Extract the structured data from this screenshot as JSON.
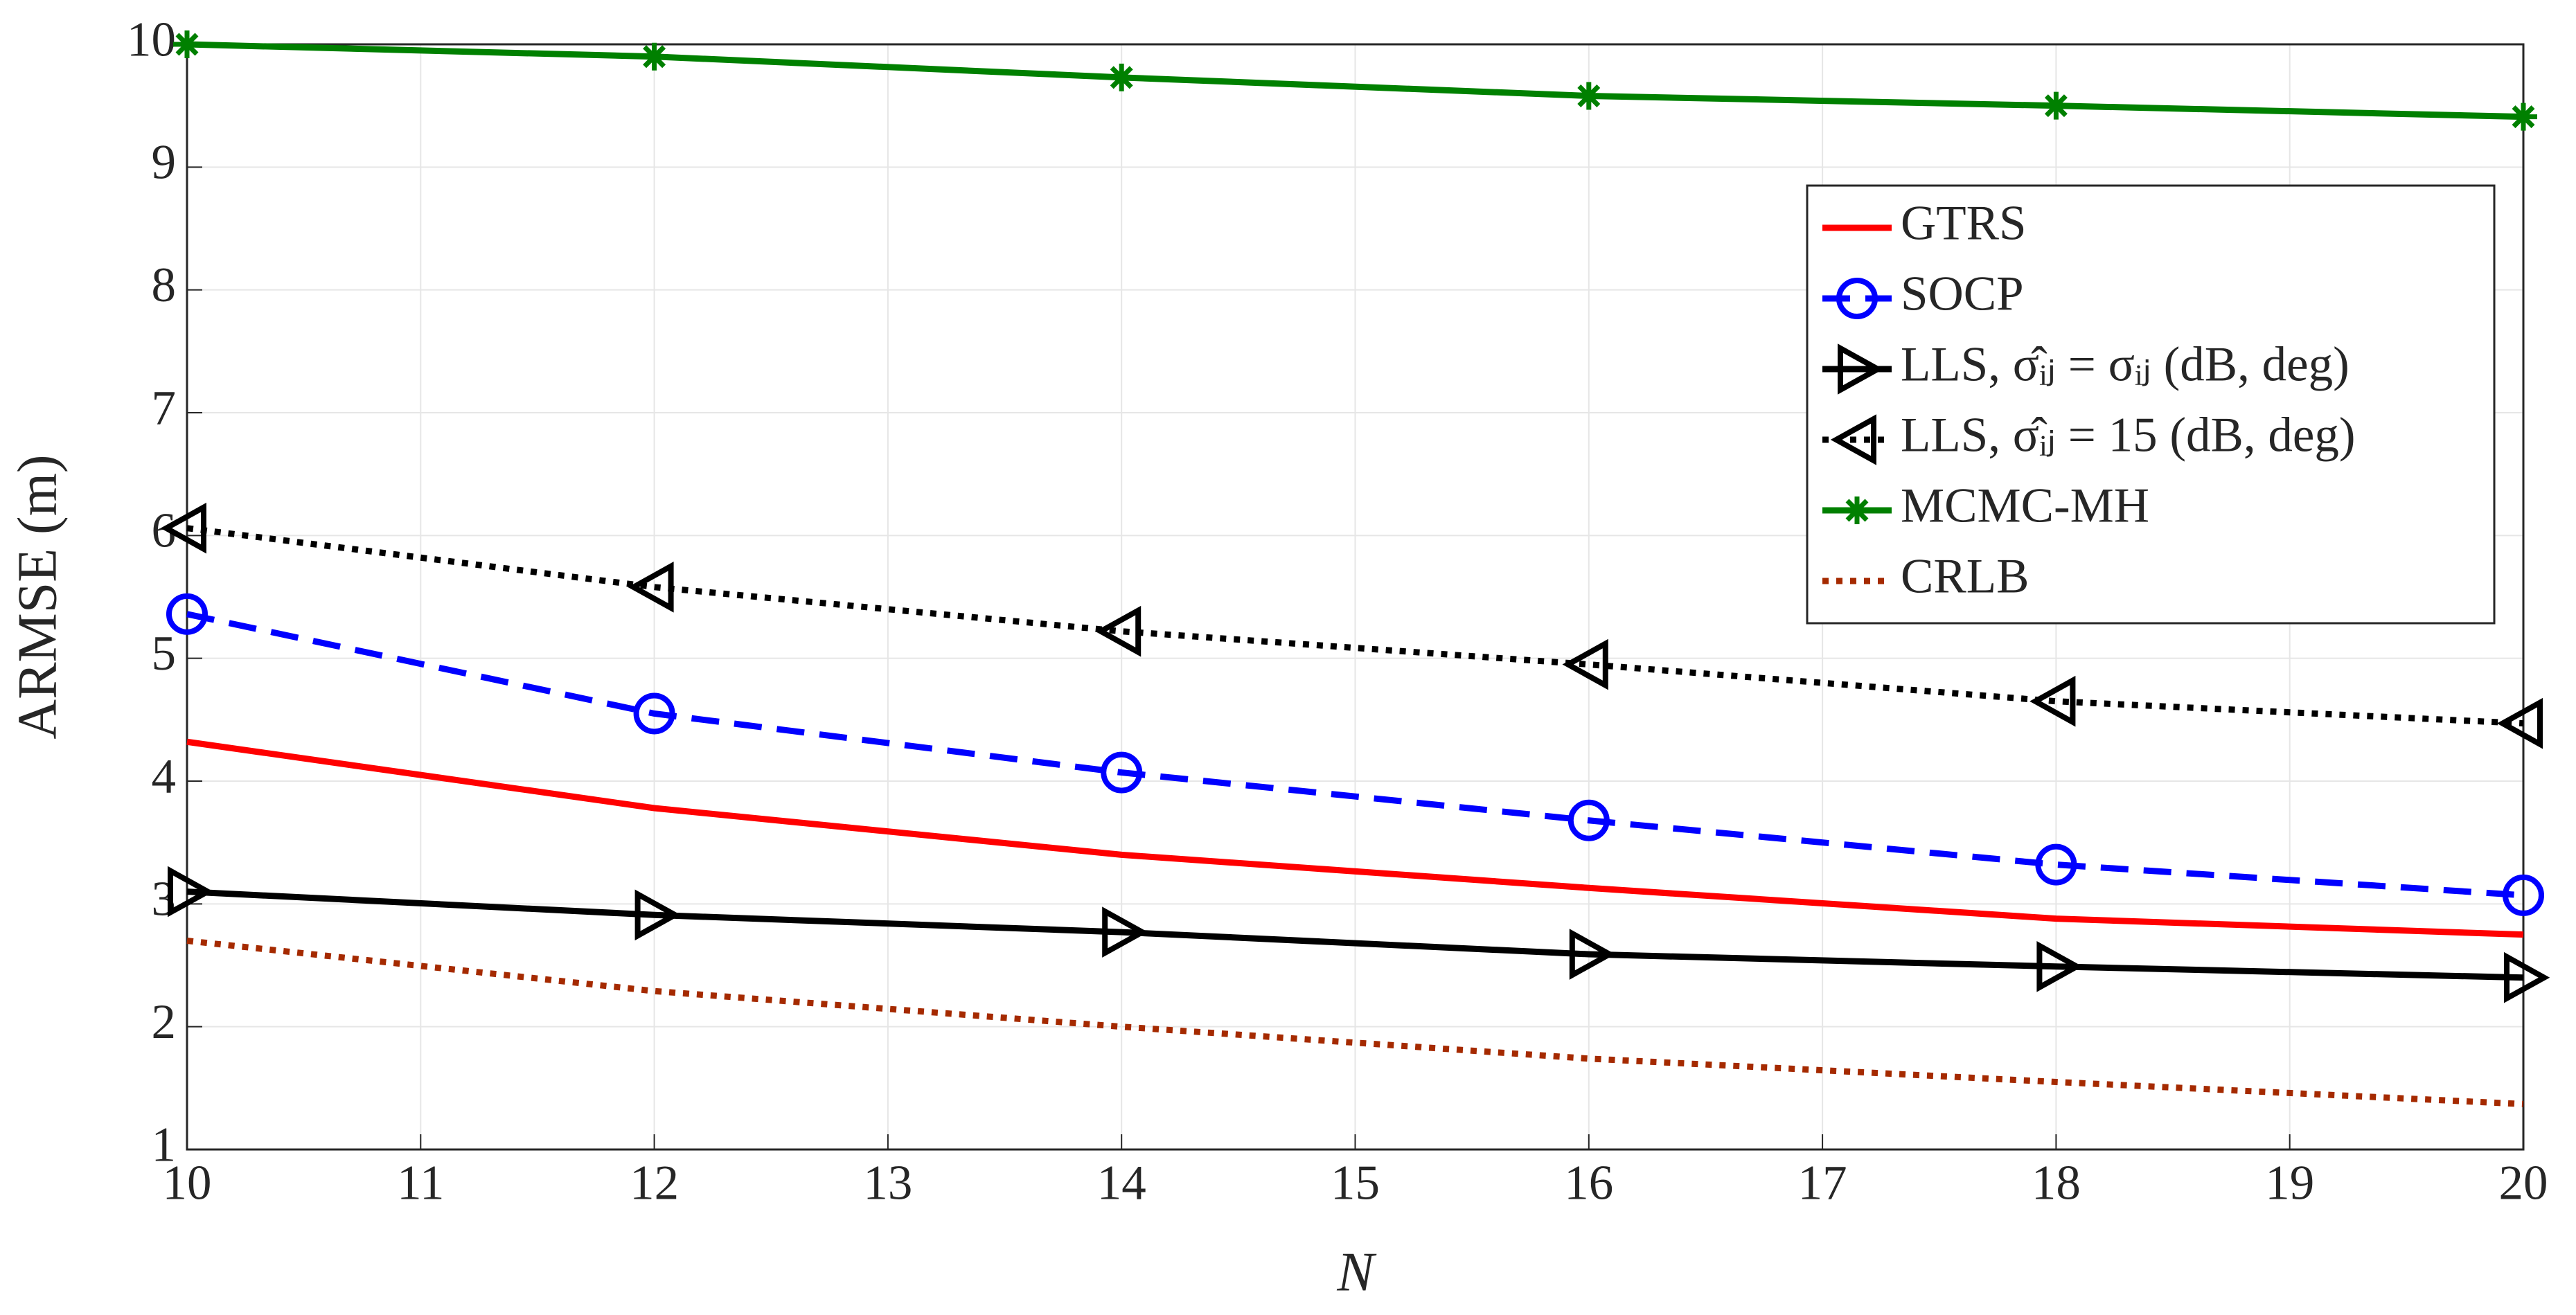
{
  "chart_data": {
    "type": "line",
    "xlabel": "N",
    "ylabel": "ARMSE (m)",
    "x": [
      10,
      12,
      14,
      16,
      18,
      20
    ],
    "series": [
      {
        "name": "GTRS",
        "color": "#ff0000",
        "marker": "none",
        "dash": "solid",
        "values": [
          4.32,
          3.78,
          3.4,
          3.13,
          2.88,
          2.75
        ]
      },
      {
        "name": "SOCP",
        "color": "#0000ff",
        "marker": "circle",
        "dash": "dashed",
        "values": [
          5.36,
          4.55,
          4.07,
          3.68,
          3.32,
          3.07
        ]
      },
      {
        "name": "LLS, σ̂ᵢⱼ = σᵢⱼ (dB, deg)",
        "color": "#000000",
        "marker": "triangle-right",
        "dash": "solid",
        "values": [
          3.1,
          2.91,
          2.77,
          2.59,
          2.49,
          2.4
        ]
      },
      {
        "name": "LLS, σ̂ᵢⱼ = 15 (dB, deg)",
        "color": "#000000",
        "marker": "triangle-left",
        "dash": "dotted",
        "values": [
          6.06,
          5.58,
          5.22,
          4.95,
          4.65,
          4.47
        ]
      },
      {
        "name": "MCMC-MH",
        "color": "#008000",
        "marker": "asterisk",
        "dash": "solid",
        "values": [
          10,
          9.9,
          9.73,
          9.58,
          9.5,
          9.41
        ]
      },
      {
        "name": "CRLB",
        "color": "#a52a00",
        "marker": "none",
        "dash": "dotted",
        "values": [
          2.7,
          2.29,
          2.0,
          1.74,
          1.55,
          1.37
        ]
      }
    ],
    "xlim": [
      10,
      20
    ],
    "xticks": [
      10,
      11,
      12,
      13,
      14,
      15,
      16,
      17,
      18,
      19,
      20
    ],
    "ylim": [
      1,
      10
    ],
    "yticks": [
      1,
      2,
      3,
      4,
      5,
      6,
      7,
      8,
      9,
      10
    ],
    "grid": true,
    "legend": "upper right"
  }
}
